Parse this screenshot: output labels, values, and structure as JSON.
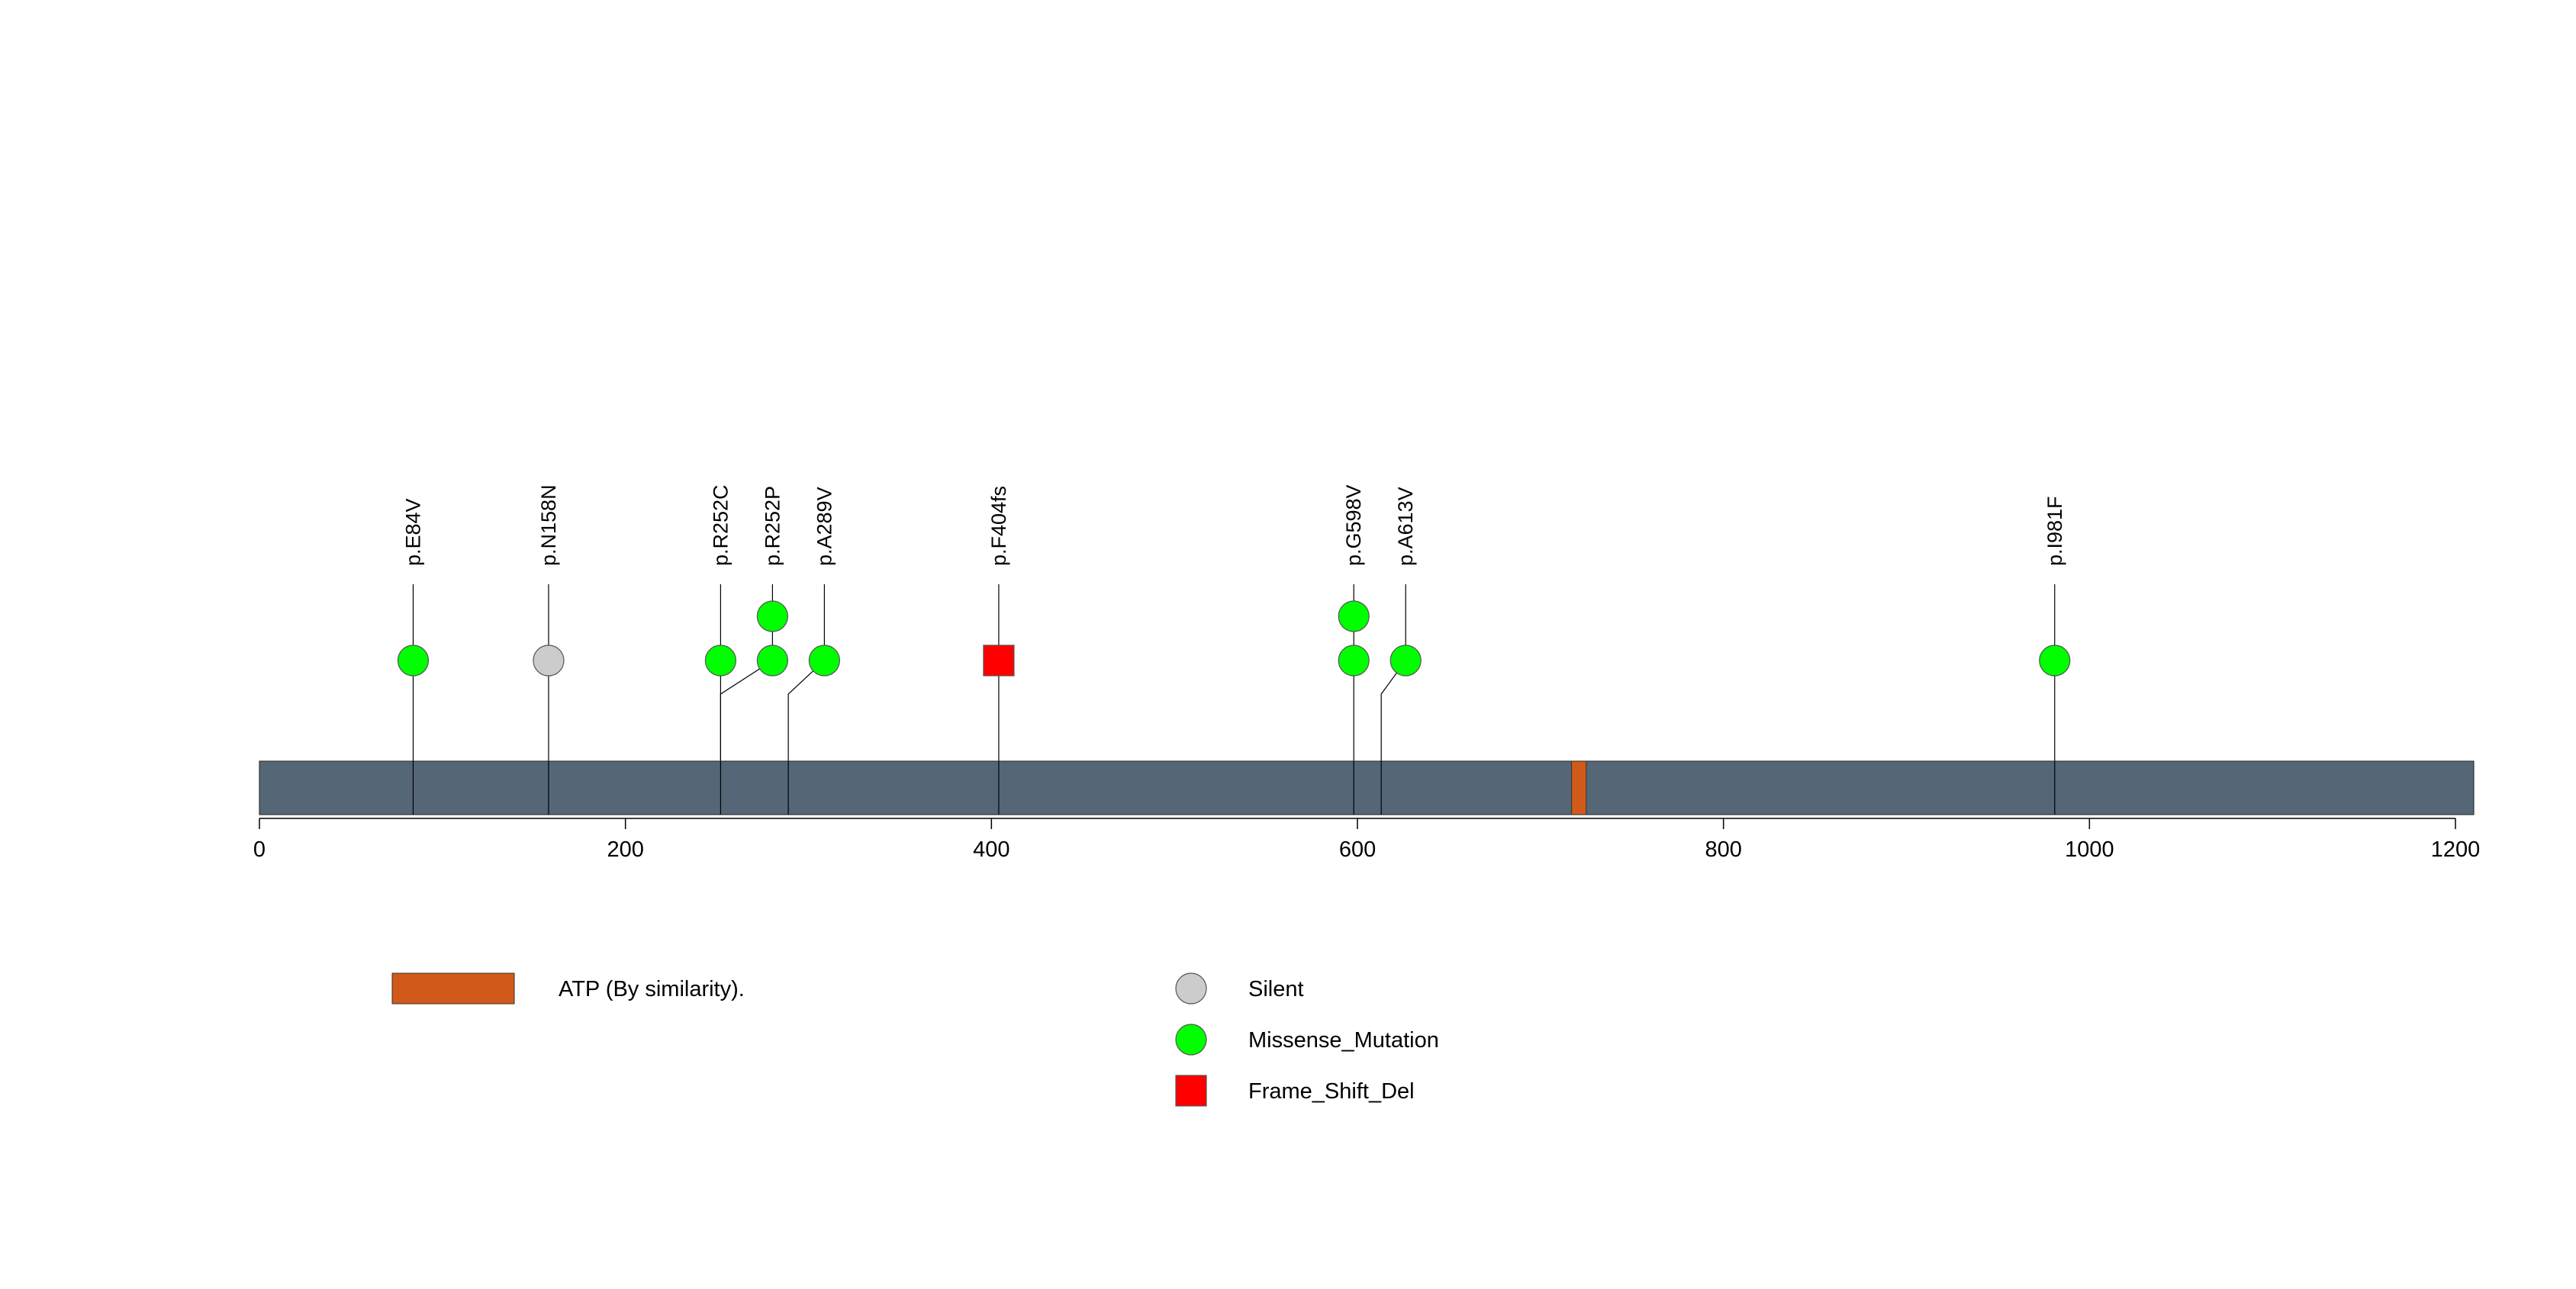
{
  "chart_data": {
    "type": "lollipop",
    "title": "",
    "xlabel": "",
    "ylabel": "",
    "xlim": [
      0,
      1210
    ],
    "x_ticks": [
      0,
      200,
      400,
      600,
      800,
      1000,
      1200
    ],
    "protein_length": 1210,
    "protein_color": "#556677",
    "domains": [
      {
        "name": "ATP (By similarity).",
        "start": 717,
        "end": 725,
        "color": "#D15A1A"
      }
    ],
    "mutations": [
      {
        "label": "p.E84V",
        "position": 84,
        "type": "Missense_Mutation",
        "count": 1
      },
      {
        "label": "p.N158N",
        "position": 158,
        "type": "Silent",
        "count": 1
      },
      {
        "label": "p.R252C",
        "position": 252,
        "type": "Missense_Mutation",
        "count": 1
      },
      {
        "label": "p.R252P",
        "position": 252,
        "type": "Missense_Mutation",
        "count": 2
      },
      {
        "label": "p.A289V",
        "position": 289,
        "type": "Missense_Mutation",
        "count": 1
      },
      {
        "label": "p.F404fs",
        "position": 404,
        "type": "Frame_Shift_Del",
        "count": 1
      },
      {
        "label": "p.G598V",
        "position": 598,
        "type": "Missense_Mutation",
        "count": 2
      },
      {
        "label": "p.A613V",
        "position": 613,
        "type": "Missense_Mutation",
        "count": 1
      },
      {
        "label": "p.I981F",
        "position": 981,
        "type": "Missense_Mutation",
        "count": 1
      }
    ],
    "legend": {
      "domains": [
        {
          "label": "ATP (By similarity).",
          "color": "#D15A1A"
        }
      ],
      "mutation_types": [
        {
          "label": "Silent",
          "shape": "circle",
          "color": "#CCCCCC"
        },
        {
          "label": "Missense_Mutation",
          "shape": "circle",
          "color": "#00FF00"
        },
        {
          "label": "Frame_Shift_Del",
          "shape": "square",
          "color": "#FF0000"
        }
      ]
    }
  }
}
